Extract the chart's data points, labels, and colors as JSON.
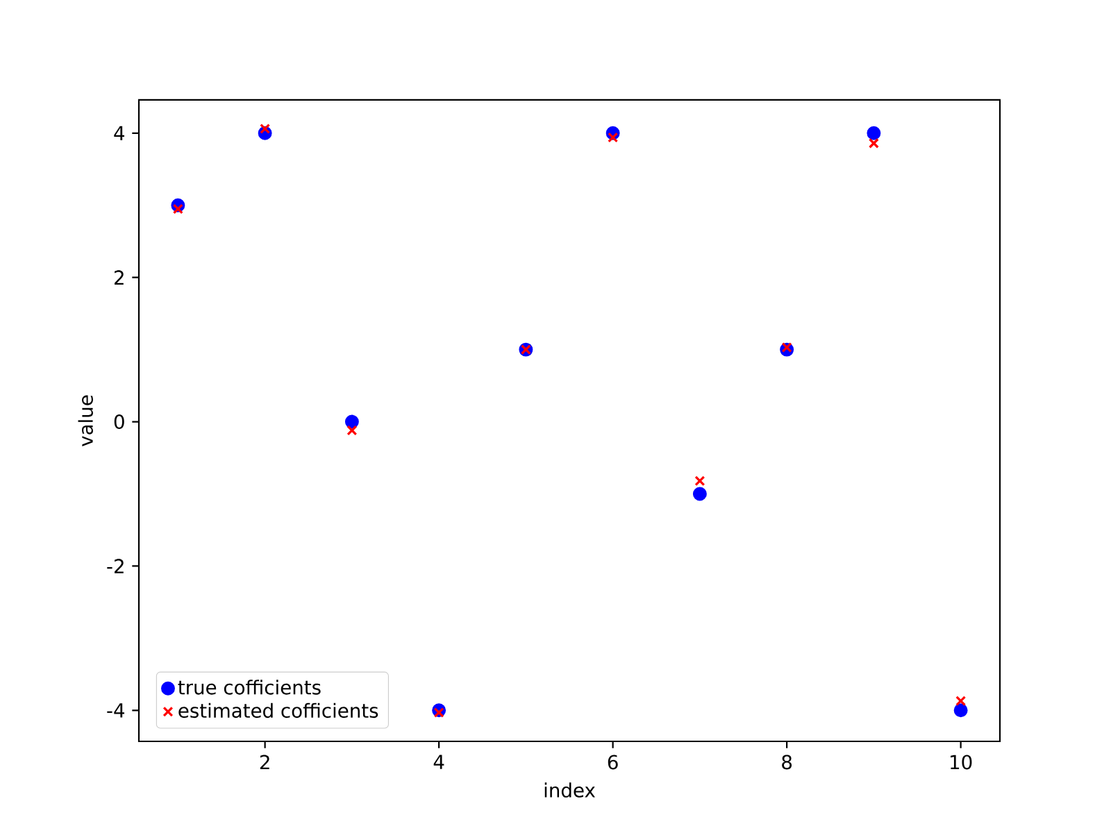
{
  "chart_data": {
    "type": "scatter",
    "xlabel": "index",
    "ylabel": "value",
    "x": [
      1,
      2,
      3,
      4,
      5,
      6,
      7,
      8,
      9,
      10
    ],
    "series": [
      {
        "name": "true cofficients",
        "color": "#0000ff",
        "marker": "circle",
        "values": [
          3,
          4,
          0,
          -4,
          1,
          4,
          -1,
          1,
          4,
          -4
        ]
      },
      {
        "name": "estimated cofficients",
        "color": "#ff0000",
        "marker": "cross",
        "values": [
          2.95,
          4.06,
          -0.12,
          -4.03,
          1.0,
          3.94,
          -0.82,
          1.03,
          3.86,
          -3.87
        ]
      }
    ],
    "xlim": [
      0.55,
      10.45
    ],
    "ylim": [
      -4.43,
      4.46
    ],
    "xticks": [
      2,
      4,
      6,
      8,
      10
    ],
    "yticks": [
      -4,
      -2,
      0,
      2,
      4
    ],
    "legend": "bottom left",
    "grid": false
  }
}
